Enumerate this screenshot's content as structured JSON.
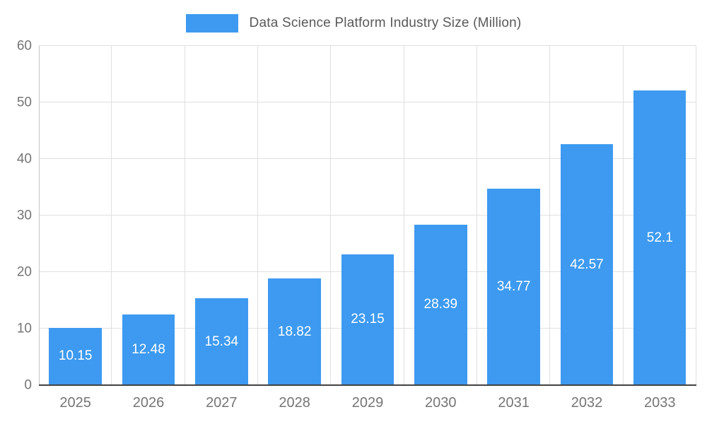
{
  "chart_data": {
    "type": "bar",
    "title": "Data Science Platform Industry Size (Million)",
    "categories": [
      "2025",
      "2026",
      "2027",
      "2028",
      "2029",
      "2030",
      "2031",
      "2032",
      "2033"
    ],
    "values": [
      10.15,
      12.48,
      15.34,
      18.82,
      23.15,
      28.39,
      34.77,
      42.57,
      52.1
    ],
    "value_labels": [
      "10.15",
      "12.48",
      "15.34",
      "18.82",
      "23.15",
      "28.39",
      "34.77",
      "42.57",
      "52.1"
    ],
    "xlabel": "",
    "ylabel": "",
    "ylim": [
      0,
      60
    ],
    "yticks": [
      0,
      10,
      20,
      30,
      40,
      50,
      60
    ],
    "grid": true,
    "legend_position": "top",
    "bar_color": "#3D9AF0",
    "value_label_color": "#ffffff",
    "grid_color": "#e0e0e0",
    "axis_text_color": "#757575",
    "title_color": "#595959"
  }
}
